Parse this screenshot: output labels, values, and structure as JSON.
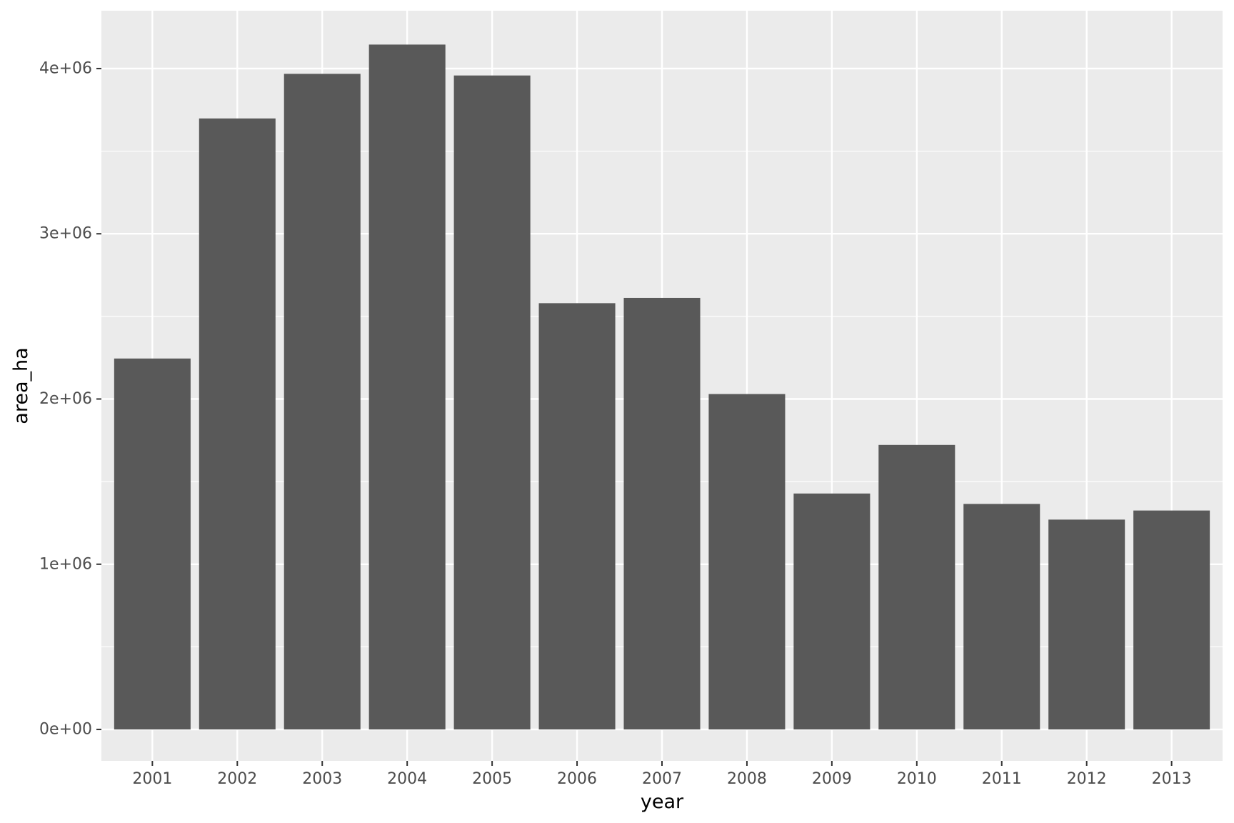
{
  "chart_data": {
    "type": "bar",
    "xlabel": "year",
    "ylabel": "area_ha",
    "categories": [
      "2001",
      "2002",
      "2003",
      "2004",
      "2005",
      "2006",
      "2007",
      "2008",
      "2009",
      "2010",
      "2011",
      "2012",
      "2013"
    ],
    "values": [
      2245000,
      3698000,
      3968000,
      4145000,
      3958000,
      2580000,
      2612000,
      2030000,
      1428000,
      1722000,
      1365000,
      1270000,
      1325000
    ],
    "ylim": [
      -190000,
      4350000
    ],
    "yticks": [
      0,
      1000000,
      2000000,
      3000000,
      4000000
    ],
    "ytick_labels": [
      "0e+00",
      "1e+06",
      "2e+06",
      "3e+06",
      "4e+06"
    ],
    "grid": true,
    "colors": {
      "panel_background": "#ebebeb",
      "grid": "#ffffff",
      "bar": "#595959",
      "tick_text": "#4d4d4d",
      "tick_mark": "#333333",
      "title_text": "#000000"
    }
  }
}
